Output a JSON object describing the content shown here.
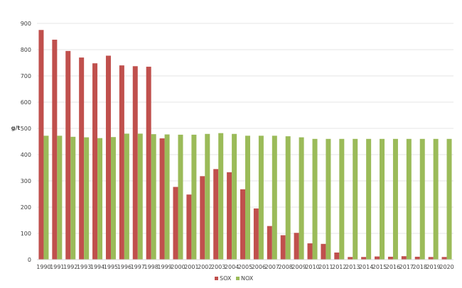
{
  "chart_data": {
    "type": "bar",
    "title": "",
    "xlabel": "",
    "ylabel": "g/t",
    "ylim": [
      0,
      900
    ],
    "yticks": [
      0,
      100,
      200,
      300,
      400,
      500,
      600,
      700,
      800,
      900
    ],
    "grid": true,
    "legend_position": "bottom",
    "categories": [
      "1990",
      "1991",
      "1992",
      "1993",
      "1994",
      "1995",
      "1996",
      "1997",
      "1998",
      "1999",
      "2000",
      "2001",
      "2002",
      "2003",
      "2004",
      "2005",
      "2006",
      "2007",
      "2008",
      "2009",
      "2010",
      "2011",
      "2012",
      "2013",
      "2014",
      "2015",
      "2016",
      "2017",
      "2018",
      "2019",
      "2020"
    ],
    "series": [
      {
        "name": "SOX",
        "color": "#c0504d",
        "values": [
          875,
          838,
          795,
          770,
          748,
          777,
          740,
          737,
          735,
          462,
          277,
          248,
          318,
          345,
          333,
          268,
          195,
          128,
          93,
          102,
          62,
          60,
          27,
          10,
          10,
          12,
          11,
          13,
          11,
          10,
          10
        ]
      },
      {
        "name": "NOX",
        "color": "#9bbb59",
        "values": [
          472,
          472,
          468,
          466,
          463,
          467,
          480,
          480,
          478,
          477,
          476,
          476,
          479,
          482,
          479,
          472,
          472,
          472,
          470,
          466,
          460,
          460,
          460,
          460,
          460,
          460,
          460,
          460,
          460,
          460,
          460
        ]
      }
    ]
  }
}
